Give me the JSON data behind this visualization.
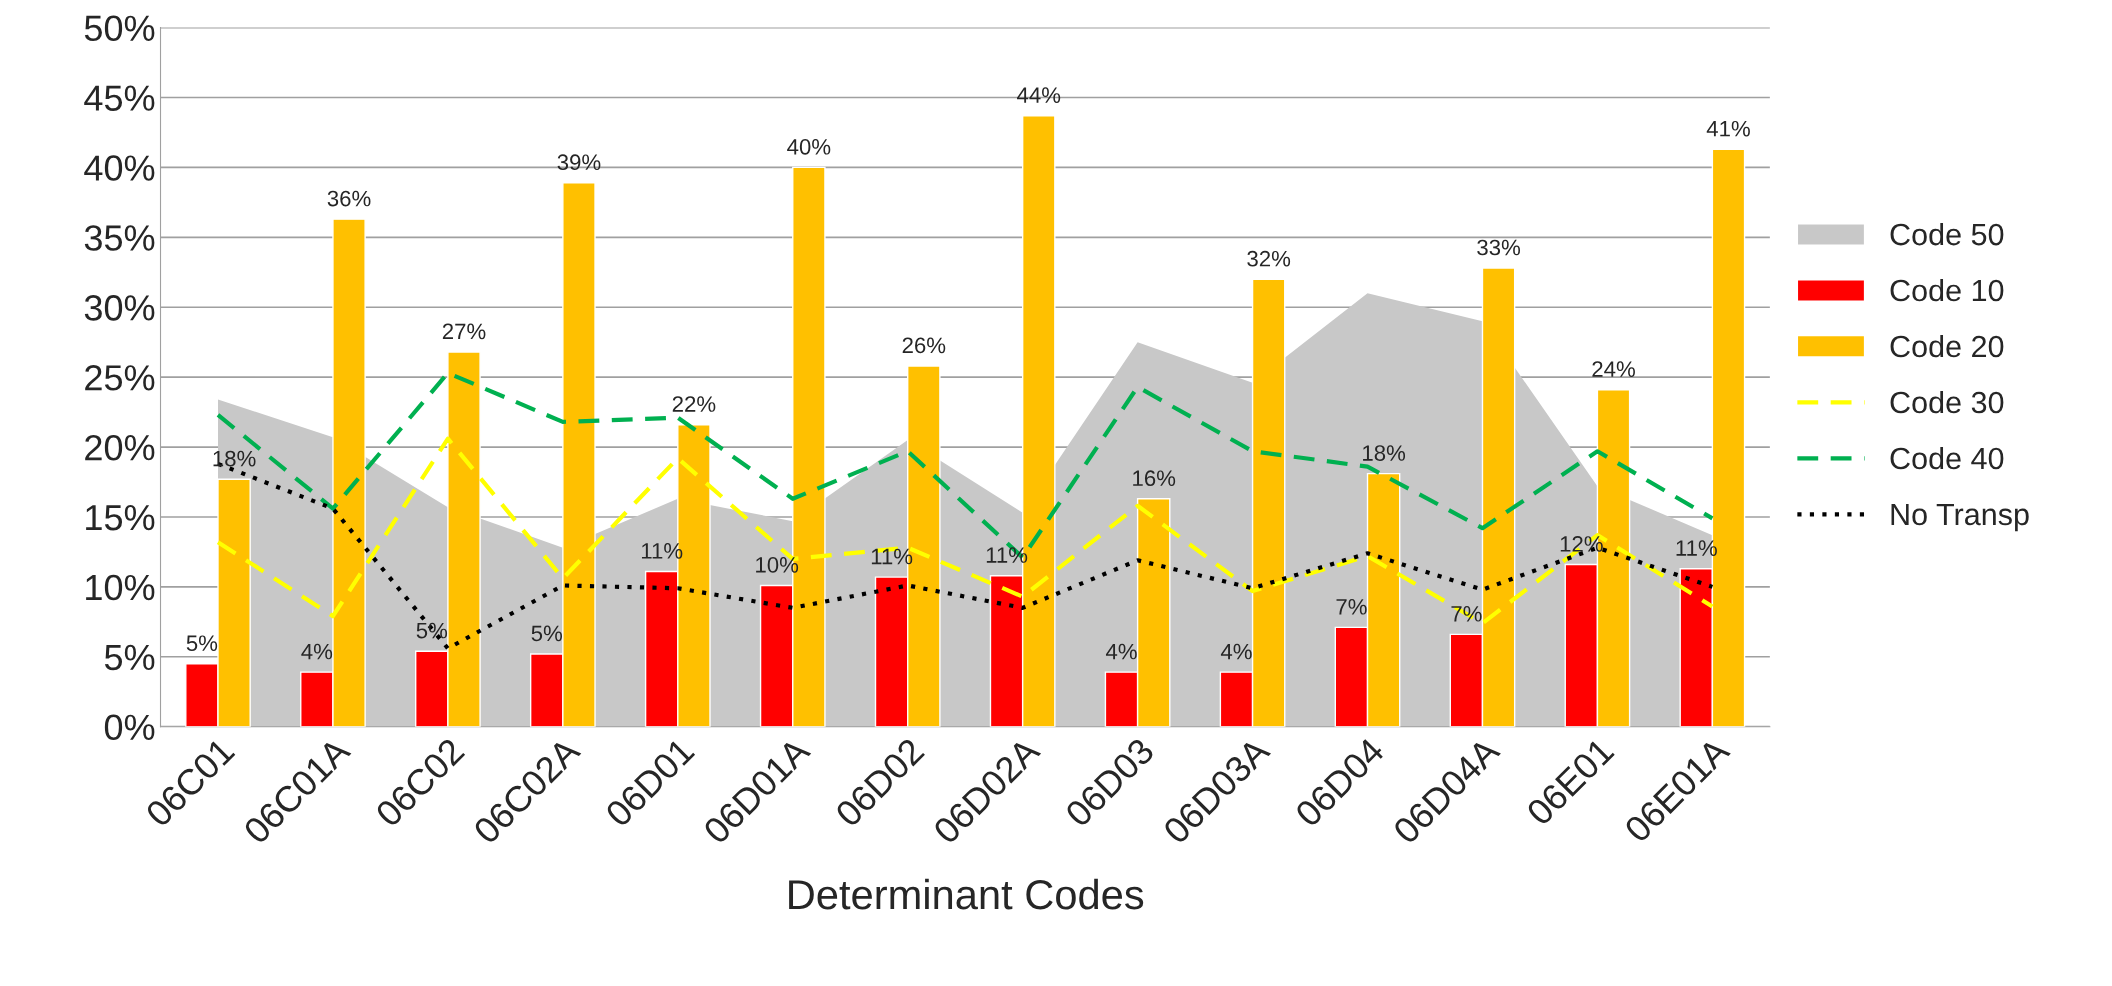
{
  "chart_data": {
    "type": "bar",
    "xlabel": "Determinant Codes",
    "categories": [
      "06C01",
      "06C01A",
      "06C02",
      "06C02A",
      "06D01",
      "06D01A",
      "06D02",
      "06D02A",
      "06D03",
      "06D03A",
      "06D04",
      "06D04A",
      "06E01",
      "06E01A"
    ],
    "series": [
      {
        "name": "Code 50",
        "type": "area",
        "color": "#c8c8c8",
        "values": [
          23.4,
          20.7,
          15.7,
          12.8,
          16.3,
          14.7,
          20.5,
          15.3,
          27.5,
          24.6,
          31.0,
          29.0,
          17.2,
          13.7
        ]
      },
      {
        "name": "Code 10",
        "color": "#ff0000",
        "values": [
          4.5,
          3.9,
          5.4,
          5.2,
          11.1,
          10.1,
          10.7,
          10.8,
          3.9,
          3.9,
          7.1,
          6.6,
          11.6,
          11.3
        ],
        "value_labels": [
          "5%",
          "4%",
          "5%",
          "5%",
          "11%",
          "10%",
          "11%",
          "11%",
          "4%",
          "4%",
          "7%",
          "7%",
          "12%",
          "11%"
        ]
      },
      {
        "name": "Code 20",
        "color": "#ffc000",
        "values": [
          17.7,
          36.3,
          26.8,
          38.9,
          21.6,
          40.0,
          25.8,
          43.7,
          16.3,
          32.0,
          18.1,
          32.8,
          24.1,
          41.3
        ],
        "value_labels": [
          "18%",
          "36%",
          "27%",
          "39%",
          "22%",
          "40%",
          "26%",
          "44%",
          "16%",
          "32%",
          "18%",
          "33%",
          "24%",
          "41%"
        ]
      },
      {
        "name": "Code 30",
        "type": "line",
        "color": "#ffff00",
        "line_style": "dashed",
        "values": [
          13.2,
          7.9,
          20.6,
          10.6,
          19.2,
          12.0,
          12.8,
          9.3,
          15.8,
          9.7,
          12.2,
          7.4,
          13.7,
          8.6
        ]
      },
      {
        "name": "Code 40",
        "type": "line",
        "color": "#00b050",
        "line_style": "dashed",
        "values": [
          22.3,
          15.6,
          25.3,
          21.8,
          22.1,
          16.3,
          19.7,
          12.1,
          24.3,
          19.7,
          18.6,
          14.2,
          19.7,
          14.9
        ]
      },
      {
        "name": "No Transp",
        "type": "line",
        "color": "#000000",
        "line_style": "dotted",
        "values": [
          18.8,
          15.6,
          5.6,
          10.1,
          9.9,
          8.5,
          10.1,
          8.5,
          11.9,
          9.9,
          12.4,
          9.8,
          12.8,
          10.0
        ]
      }
    ],
    "ylim": [
      0,
      50
    ],
    "yticks": [
      {
        "value": 0,
        "label": "0%"
      },
      {
        "value": 5,
        "label": "5%"
      },
      {
        "value": 10,
        "label": "10%"
      },
      {
        "value": 15,
        "label": "15%"
      },
      {
        "value": 20,
        "label": "20%"
      },
      {
        "value": 25,
        "label": "25%"
      },
      {
        "value": 30,
        "label": "30%"
      },
      {
        "value": 35,
        "label": "35%"
      },
      {
        "value": 40,
        "label": "40%"
      },
      {
        "value": 45,
        "label": "45%"
      },
      {
        "value": 50,
        "label": "50%"
      }
    ],
    "grid": "y",
    "legend": "right"
  }
}
